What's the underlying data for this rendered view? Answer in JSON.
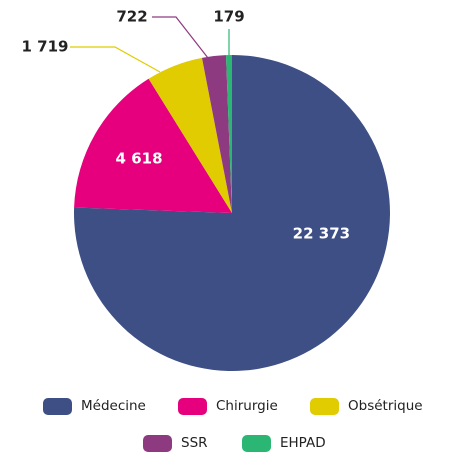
{
  "chart_data": {
    "type": "pie",
    "categories": [
      "Médecine",
      "Chirurgie",
      "Obsétrique",
      "SSR",
      "EHPAD"
    ],
    "values": [
      22373,
      4618,
      1719,
      722,
      179
    ],
    "value_labels": [
      "22 373",
      "4 618",
      "1 719",
      "722",
      "179"
    ],
    "colors": [
      "#3d4f85",
      "#e6007e",
      "#e0cc00",
      "#8e3a80",
      "#2bb673"
    ],
    "legend": "bottom"
  }
}
